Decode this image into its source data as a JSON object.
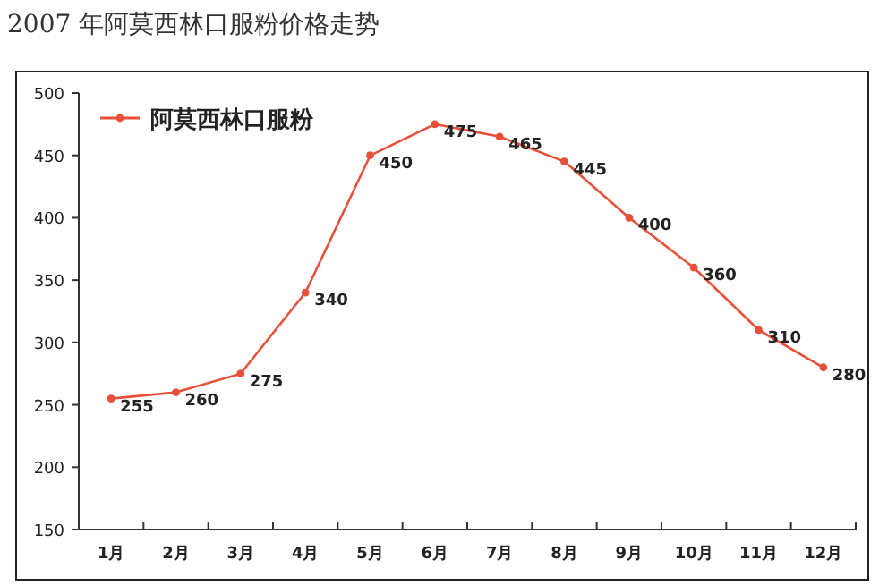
{
  "chart_data": {
    "type": "line",
    "title": "2007 年阿莫西林口服粉价格走势",
    "categories": [
      "1月",
      "2月",
      "3月",
      "4月",
      "5月",
      "6月",
      "7月",
      "8月",
      "9月",
      "10月",
      "11月",
      "12月"
    ],
    "series": [
      {
        "name": "阿莫西林口服粉",
        "color": "#e8503a",
        "values": [
          255,
          260,
          275,
          340,
          450,
          475,
          465,
          445,
          400,
          360,
          310,
          280
        ]
      }
    ],
    "ylim": [
      150,
      500
    ],
    "yticks": [
      150,
      200,
      250,
      300,
      350,
      400,
      450,
      500
    ],
    "data_labels": true,
    "legend": "top left",
    "marker": "circle",
    "line_style": "solid",
    "grid": false
  }
}
